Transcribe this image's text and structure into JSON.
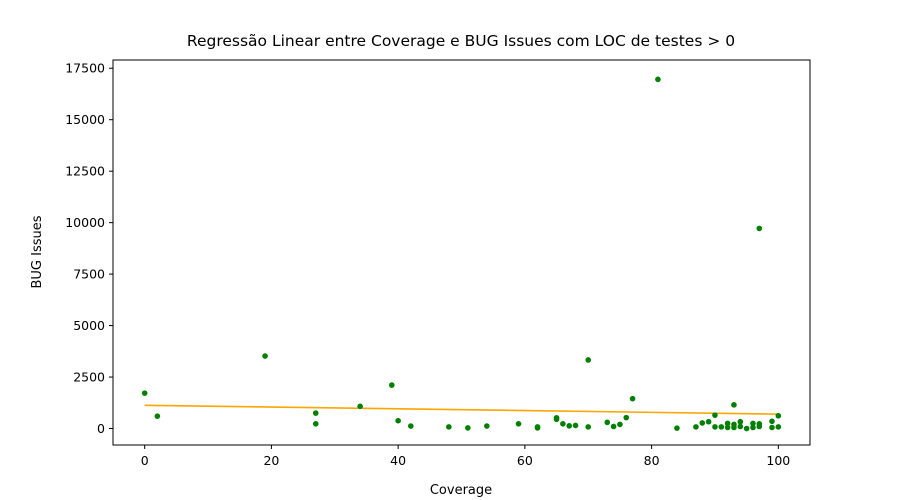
{
  "chart_data": {
    "type": "scatter",
    "title": "Regressão Linear entre Coverage e BUG Issues com LOC de testes > 0",
    "xlabel": "Coverage",
    "ylabel": "BUG Issues",
    "xlim": [
      -5,
      105
    ],
    "ylim": [
      -800,
      17900
    ],
    "xticks": [
      0,
      20,
      40,
      60,
      80,
      100
    ],
    "yticks": [
      0,
      2500,
      5000,
      7500,
      10000,
      12500,
      15000,
      17500
    ],
    "grid": false,
    "point_color": "#008000",
    "line_color": "#ffa500",
    "points": [
      {
        "x": 0,
        "y": 1720
      },
      {
        "x": 2,
        "y": 600
      },
      {
        "x": 19,
        "y": 3520
      },
      {
        "x": 27,
        "y": 750
      },
      {
        "x": 27,
        "y": 230
      },
      {
        "x": 34,
        "y": 1080
      },
      {
        "x": 39,
        "y": 2110
      },
      {
        "x": 40,
        "y": 380
      },
      {
        "x": 42,
        "y": 120
      },
      {
        "x": 48,
        "y": 80
      },
      {
        "x": 51,
        "y": 30
      },
      {
        "x": 54,
        "y": 120
      },
      {
        "x": 59,
        "y": 230
      },
      {
        "x": 62,
        "y": 80
      },
      {
        "x": 62,
        "y": 30
      },
      {
        "x": 65,
        "y": 450
      },
      {
        "x": 65,
        "y": 520
      },
      {
        "x": 66,
        "y": 230
      },
      {
        "x": 67,
        "y": 130
      },
      {
        "x": 68,
        "y": 150
      },
      {
        "x": 70,
        "y": 3330
      },
      {
        "x": 70,
        "y": 80
      },
      {
        "x": 73,
        "y": 300
      },
      {
        "x": 74,
        "y": 100
      },
      {
        "x": 75,
        "y": 200
      },
      {
        "x": 76,
        "y": 530
      },
      {
        "x": 77,
        "y": 1450
      },
      {
        "x": 81,
        "y": 16960
      },
      {
        "x": 84,
        "y": 20
      },
      {
        "x": 87,
        "y": 80
      },
      {
        "x": 88,
        "y": 270
      },
      {
        "x": 89,
        "y": 330
      },
      {
        "x": 90,
        "y": 650
      },
      {
        "x": 90,
        "y": 80
      },
      {
        "x": 91,
        "y": 80
      },
      {
        "x": 92,
        "y": 250
      },
      {
        "x": 92,
        "y": 50
      },
      {
        "x": 93,
        "y": 1150
      },
      {
        "x": 93,
        "y": 200
      },
      {
        "x": 93,
        "y": 50
      },
      {
        "x": 94,
        "y": 330
      },
      {
        "x": 94,
        "y": 100
      },
      {
        "x": 95,
        "y": 0
      },
      {
        "x": 96,
        "y": 250
      },
      {
        "x": 96,
        "y": 50
      },
      {
        "x": 97,
        "y": 9720
      },
      {
        "x": 97,
        "y": 230
      },
      {
        "x": 97,
        "y": 100
      },
      {
        "x": 99,
        "y": 350
      },
      {
        "x": 99,
        "y": 50
      },
      {
        "x": 100,
        "y": 620
      },
      {
        "x": 100,
        "y": 80
      }
    ],
    "regression_line": {
      "x": [
        0,
        100
      ],
      "y": [
        1130,
        700
      ]
    }
  }
}
